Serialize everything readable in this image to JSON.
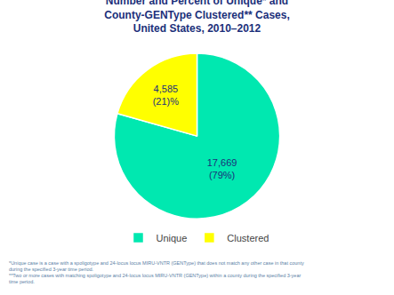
{
  "chart_data": {
    "type": "pie",
    "title": "Number and Percent of Unique* and\nCounty-GENType Clustered** Cases,\nUnited States, 2010–2012",
    "categories": [
      "Unique",
      "Clustered"
    ],
    "values": [
      17669,
      4585
    ],
    "value_labels": [
      "17,669\n(79%)",
      "4,585\n(21)%"
    ],
    "data_labels": true,
    "colors": [
      "#00E8B0",
      "#FFFF00"
    ],
    "legend": "bottom",
    "annotations": [
      "*Unique case is a case with a spoligotype and 24-locus locus MIRU-VNTR (GENType) that does not match any other case in that county",
      "during the specified 3-year time period.",
      "**Two or more cases with matching spoligotype and 24-locus locus MIRU-VNTR (GENType) within a county during the specified 3-year",
      "time period."
    ]
  }
}
